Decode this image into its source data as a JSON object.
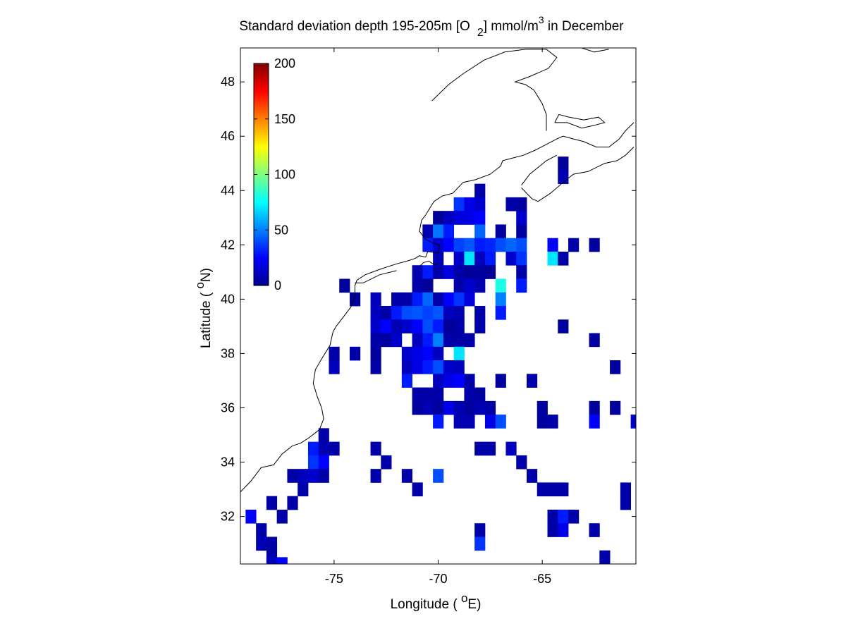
{
  "chart_data": {
    "type": "heatmap",
    "title": "Standard deviation depth 195-205m [O 2] mmol/m3 in December",
    "title_parts": {
      "main": "Standard deviation depth 195-205m [O",
      "subscript": "2",
      "units_pre": "] mmol/m",
      "superscript": "3",
      "tail": " in December"
    },
    "xlabel": "Longitude ( oE)",
    "xlabel_parts": {
      "pre": "Longitude ( ",
      "sup": "o",
      "post": "E)"
    },
    "ylabel": "Latitude ( oN)",
    "ylabel_parts": {
      "pre": "Latitude ( ",
      "sup": "o",
      "post": "N)"
    },
    "xlim": [
      -79.5,
      -60.5
    ],
    "ylim": [
      30.25,
      49.25
    ],
    "xticks": [
      -75,
      -70,
      -65
    ],
    "yticks": [
      32,
      34,
      36,
      38,
      40,
      42,
      44,
      46,
      48
    ],
    "xtick_labels": [
      "-75",
      "-70",
      "-65"
    ],
    "ytick_labels": [
      "32",
      "34",
      "36",
      "38",
      "40",
      "42",
      "44",
      "46",
      "48"
    ],
    "colorbar": {
      "colormap": "jet",
      "range": [
        0,
        200
      ],
      "ticks": [
        0,
        50,
        100,
        150,
        200
      ],
      "tick_labels": [
        "0",
        "50",
        "100",
        "150",
        "200"
      ],
      "position": "top-left, inside axes"
    },
    "grid": false,
    "cell_size_deg": 0.5,
    "cells": [
      [
        -64.0,
        45.0,
        5
      ],
      [
        -64.0,
        44.5,
        10
      ],
      [
        -68.0,
        44.0,
        8
      ],
      [
        -69.0,
        43.5,
        35
      ],
      [
        -68.5,
        43.5,
        20
      ],
      [
        -68.0,
        43.5,
        15
      ],
      [
        -66.5,
        43.5,
        8
      ],
      [
        -66.0,
        43.5,
        6
      ],
      [
        -70.0,
        43.0,
        5
      ],
      [
        -69.5,
        43.0,
        12
      ],
      [
        -69.0,
        43.0,
        18
      ],
      [
        -68.5,
        43.0,
        20
      ],
      [
        -68.0,
        43.0,
        25
      ],
      [
        -66.0,
        43.0,
        15
      ],
      [
        -70.5,
        42.5,
        10
      ],
      [
        -70.0,
        42.5,
        48
      ],
      [
        -69.5,
        42.5,
        30
      ],
      [
        -68.0,
        42.5,
        45
      ],
      [
        -67.0,
        42.5,
        6
      ],
      [
        -66.0,
        42.5,
        6
      ],
      [
        -70.5,
        42.0,
        30
      ],
      [
        -70.0,
        42.0,
        15
      ],
      [
        -69.5,
        42.0,
        25
      ],
      [
        -69.0,
        42.0,
        38
      ],
      [
        -68.5,
        42.0,
        42
      ],
      [
        -68.0,
        42.0,
        30
      ],
      [
        -67.5,
        42.0,
        32
      ],
      [
        -67.0,
        42.0,
        40
      ],
      [
        -66.5,
        42.0,
        45
      ],
      [
        -66.0,
        42.0,
        40
      ],
      [
        -64.5,
        42.0,
        25
      ],
      [
        -63.5,
        42.0,
        8
      ],
      [
        -62.5,
        42.0,
        6
      ],
      [
        -70.0,
        41.5,
        10
      ],
      [
        -69.0,
        41.5,
        15
      ],
      [
        -68.5,
        41.5,
        70
      ],
      [
        -68.0,
        41.5,
        12
      ],
      [
        -67.5,
        41.5,
        30
      ],
      [
        -66.5,
        41.5,
        15
      ],
      [
        -66.0,
        41.5,
        35
      ],
      [
        -64.5,
        41.5,
        70
      ],
      [
        -64.0,
        41.5,
        8
      ],
      [
        -71.0,
        41.0,
        10
      ],
      [
        -70.5,
        41.0,
        30
      ],
      [
        -70.0,
        41.0,
        8
      ],
      [
        -69.5,
        41.0,
        18
      ],
      [
        -69.0,
        41.0,
        8
      ],
      [
        -68.5,
        41.0,
        5
      ],
      [
        -68.0,
        41.0,
        6
      ],
      [
        -67.5,
        41.0,
        5
      ],
      [
        -66.0,
        41.0,
        8
      ],
      [
        -74.5,
        40.5,
        6
      ],
      [
        -71.0,
        40.5,
        8
      ],
      [
        -70.5,
        40.5,
        5
      ],
      [
        -69.0,
        40.5,
        8
      ],
      [
        -68.5,
        40.5,
        15
      ],
      [
        -68.0,
        40.5,
        10
      ],
      [
        -67.0,
        40.5,
        80
      ],
      [
        -66.0,
        40.5,
        30
      ],
      [
        -74.0,
        40.0,
        6
      ],
      [
        -73.0,
        40.0,
        12
      ],
      [
        -72.0,
        40.0,
        8
      ],
      [
        -71.5,
        40.0,
        8
      ],
      [
        -71.0,
        40.0,
        30
      ],
      [
        -70.5,
        40.0,
        45
      ],
      [
        -70.0,
        40.0,
        8
      ],
      [
        -69.5,
        40.0,
        25
      ],
      [
        -69.0,
        40.0,
        35
      ],
      [
        -68.5,
        40.0,
        18
      ],
      [
        -67.0,
        40.0,
        50
      ],
      [
        -73.0,
        39.5,
        12
      ],
      [
        -72.5,
        39.5,
        8
      ],
      [
        -72.0,
        39.5,
        30
      ],
      [
        -71.5,
        39.5,
        40
      ],
      [
        -71.0,
        39.5,
        42
      ],
      [
        -70.5,
        39.5,
        38
      ],
      [
        -70.0,
        39.5,
        42
      ],
      [
        -69.5,
        39.5,
        12
      ],
      [
        -69.0,
        39.5,
        10
      ],
      [
        -68.0,
        39.5,
        8
      ],
      [
        -67.0,
        39.5,
        30
      ],
      [
        -73.0,
        39.0,
        15
      ],
      [
        -72.5,
        39.0,
        25
      ],
      [
        -72.0,
        39.0,
        10
      ],
      [
        -71.5,
        39.0,
        15
      ],
      [
        -71.0,
        39.0,
        25
      ],
      [
        -70.5,
        39.0,
        40
      ],
      [
        -70.0,
        39.0,
        30
      ],
      [
        -69.5,
        39.0,
        5
      ],
      [
        -69.0,
        39.0,
        8
      ],
      [
        -68.0,
        39.0,
        8
      ],
      [
        -64.0,
        39.0,
        6
      ],
      [
        -73.0,
        38.5,
        8
      ],
      [
        -72.5,
        38.5,
        6
      ],
      [
        -72.0,
        38.5,
        15
      ],
      [
        -71.0,
        38.5,
        12
      ],
      [
        -70.5,
        38.5,
        30
      ],
      [
        -70.0,
        38.5,
        50
      ],
      [
        -69.5,
        38.5,
        8
      ],
      [
        -69.0,
        38.5,
        8
      ],
      [
        -68.5,
        38.5,
        8
      ],
      [
        -62.5,
        38.5,
        6
      ],
      [
        -75.0,
        38.0,
        8
      ],
      [
        -74.0,
        38.0,
        8
      ],
      [
        -73.0,
        38.0,
        6
      ],
      [
        -71.5,
        38.0,
        15
      ],
      [
        -71.0,
        38.0,
        20
      ],
      [
        -70.5,
        38.0,
        25
      ],
      [
        -70.0,
        38.0,
        12
      ],
      [
        -69.0,
        38.0,
        70
      ],
      [
        -75.0,
        37.5,
        12
      ],
      [
        -73.0,
        37.5,
        8
      ],
      [
        -71.5,
        37.5,
        12
      ],
      [
        -71.0,
        37.5,
        20
      ],
      [
        -70.5,
        37.5,
        30
      ],
      [
        -70.0,
        37.5,
        40
      ],
      [
        -69.5,
        37.5,
        15
      ],
      [
        -69.0,
        37.5,
        12
      ],
      [
        -61.5,
        37.5,
        6
      ],
      [
        -71.5,
        37.0,
        30
      ],
      [
        -70.0,
        37.0,
        12
      ],
      [
        -69.5,
        37.0,
        20
      ],
      [
        -69.0,
        37.0,
        25
      ],
      [
        -68.5,
        37.0,
        8
      ],
      [
        -67.0,
        37.0,
        6
      ],
      [
        -65.5,
        37.0,
        8
      ],
      [
        -71.0,
        36.5,
        8
      ],
      [
        -70.5,
        36.5,
        8
      ],
      [
        -70.0,
        36.5,
        8
      ],
      [
        -68.5,
        36.5,
        8
      ],
      [
        -68.0,
        36.5,
        6
      ],
      [
        -71.0,
        36.0,
        6
      ],
      [
        -70.5,
        36.0,
        10
      ],
      [
        -70.0,
        36.0,
        6
      ],
      [
        -69.5,
        36.0,
        20
      ],
      [
        -69.0,
        36.0,
        10
      ],
      [
        -68.5,
        36.0,
        6
      ],
      [
        -68.0,
        36.0,
        10
      ],
      [
        -67.5,
        36.0,
        8
      ],
      [
        -65.0,
        36.0,
        6
      ],
      [
        -62.5,
        36.0,
        6
      ],
      [
        -61.5,
        36.0,
        6
      ],
      [
        -70.0,
        35.5,
        30
      ],
      [
        -69.0,
        35.5,
        10
      ],
      [
        -68.5,
        35.5,
        10
      ],
      [
        -67.5,
        35.5,
        20
      ],
      [
        -67.0,
        35.5,
        40
      ],
      [
        -65.0,
        35.5,
        6
      ],
      [
        -64.5,
        35.5,
        8
      ],
      [
        -62.5,
        35.5,
        25
      ],
      [
        -60.5,
        35.5,
        15
      ],
      [
        -75.5,
        35.0,
        8
      ],
      [
        -76.0,
        34.5,
        30
      ],
      [
        -75.5,
        34.5,
        10
      ],
      [
        -75.0,
        34.5,
        8
      ],
      [
        -73.0,
        34.5,
        8
      ],
      [
        -68.0,
        34.5,
        8
      ],
      [
        -67.5,
        34.5,
        8
      ],
      [
        -66.5,
        34.5,
        12
      ],
      [
        -76.0,
        34.0,
        35
      ],
      [
        -75.5,
        34.0,
        25
      ],
      [
        -72.5,
        34.0,
        8
      ],
      [
        -66.0,
        34.0,
        8
      ],
      [
        -77.0,
        33.5,
        8
      ],
      [
        -76.5,
        33.5,
        12
      ],
      [
        -76.0,
        33.5,
        15
      ],
      [
        -75.5,
        33.5,
        8
      ],
      [
        -73.0,
        33.5,
        8
      ],
      [
        -71.5,
        33.5,
        8
      ],
      [
        -70.0,
        33.5,
        40
      ],
      [
        -65.5,
        33.5,
        8
      ],
      [
        -76.5,
        33.0,
        8
      ],
      [
        -71.0,
        33.0,
        8
      ],
      [
        -65.0,
        33.0,
        8
      ],
      [
        -64.5,
        33.0,
        8
      ],
      [
        -64.0,
        33.0,
        8
      ],
      [
        -61.0,
        33.0,
        8
      ],
      [
        -78.0,
        32.5,
        8
      ],
      [
        -77.0,
        32.5,
        8
      ],
      [
        -61.0,
        32.5,
        8
      ],
      [
        -79.0,
        32.0,
        25
      ],
      [
        -77.5,
        32.0,
        8
      ],
      [
        -64.5,
        32.0,
        8
      ],
      [
        -64.0,
        32.0,
        30
      ],
      [
        -63.5,
        32.0,
        8
      ],
      [
        -78.5,
        31.5,
        8
      ],
      [
        -68.0,
        31.5,
        8
      ],
      [
        -64.5,
        31.5,
        8
      ],
      [
        -64.0,
        31.5,
        20
      ],
      [
        -62.5,
        31.5,
        8
      ],
      [
        -78.5,
        31.0,
        10
      ],
      [
        -78.0,
        31.0,
        8
      ],
      [
        -68.0,
        31.0,
        35
      ],
      [
        -78.0,
        30.5,
        8
      ],
      [
        -62.0,
        30.5,
        8
      ],
      [
        -78.0,
        30.25,
        12
      ],
      [
        -77.5,
        30.25,
        25
      ]
    ],
    "coastlines": [
      [
        [
          -79.5,
          32.9
        ],
        [
          -79.0,
          33.3
        ],
        [
          -78.5,
          33.8
        ],
        [
          -77.9,
          33.9
        ],
        [
          -77.5,
          34.3
        ],
        [
          -77.0,
          34.6
        ],
        [
          -76.6,
          34.7
        ],
        [
          -76.2,
          34.9
        ],
        [
          -75.7,
          35.2
        ],
        [
          -75.5,
          35.6
        ],
        [
          -75.6,
          36.0
        ],
        [
          -75.8,
          36.4
        ],
        [
          -76.0,
          36.9
        ],
        [
          -75.9,
          37.4
        ],
        [
          -75.6,
          37.8
        ],
        [
          -75.2,
          38.3
        ],
        [
          -75.05,
          38.8
        ],
        [
          -74.9,
          39.0
        ],
        [
          -74.6,
          39.3
        ],
        [
          -74.2,
          39.7
        ],
        [
          -74.0,
          40.1
        ],
        [
          -74.0,
          40.5
        ],
        [
          -73.9,
          40.7
        ],
        [
          -73.5,
          40.9
        ],
        [
          -72.8,
          41.1
        ],
        [
          -72.0,
          41.3
        ],
        [
          -71.5,
          41.4
        ],
        [
          -71.1,
          41.5
        ],
        [
          -70.9,
          41.6
        ],
        [
          -70.6,
          41.55
        ],
        [
          -70.5,
          41.75
        ],
        [
          -70.0,
          41.7
        ],
        [
          -69.95,
          42.0
        ],
        [
          -70.2,
          42.05
        ],
        [
          -70.6,
          42.2
        ],
        [
          -70.9,
          42.5
        ],
        [
          -70.8,
          42.9
        ],
        [
          -70.6,
          43.1
        ],
        [
          -70.2,
          43.6
        ],
        [
          -69.8,
          43.8
        ],
        [
          -69.3,
          43.9
        ],
        [
          -68.8,
          44.3
        ],
        [
          -68.2,
          44.4
        ],
        [
          -67.5,
          44.6
        ],
        [
          -67.0,
          44.9
        ],
        [
          -66.9,
          45.1
        ],
        [
          -66.4,
          45.2
        ],
        [
          -65.9,
          45.3
        ],
        [
          -65.3,
          45.5
        ],
        [
          -64.8,
          45.7
        ],
        [
          -64.3,
          45.9
        ],
        [
          -64.0,
          46.0
        ],
        [
          -63.5,
          45.9
        ],
        [
          -63.0,
          45.8
        ],
        [
          -62.4,
          45.6
        ],
        [
          -61.8,
          45.6
        ],
        [
          -61.3,
          45.9
        ],
        [
          -61.0,
          46.2
        ],
        [
          -60.6,
          46.5
        ]
      ],
      [
        [
          -66.0,
          44.1
        ],
        [
          -65.5,
          43.7
        ],
        [
          -65.2,
          43.6
        ],
        [
          -64.6,
          43.9
        ],
        [
          -64.0,
          44.3
        ],
        [
          -63.5,
          44.6
        ],
        [
          -62.8,
          44.7
        ],
        [
          -62.0,
          45.0
        ],
        [
          -61.4,
          45.1
        ],
        [
          -61.0,
          45.3
        ],
        [
          -60.6,
          45.6
        ]
      ],
      [
        [
          -66.0,
          44.2
        ],
        [
          -65.6,
          44.6
        ],
        [
          -64.8,
          45.1
        ],
        [
          -64.3,
          45.3
        ]
      ],
      [
        [
          -64.4,
          46.5
        ],
        [
          -63.8,
          46.5
        ],
        [
          -63.1,
          46.3
        ],
        [
          -62.5,
          46.4
        ],
        [
          -62.0,
          46.5
        ],
        [
          -62.3,
          46.7
        ],
        [
          -63.0,
          46.6
        ],
        [
          -63.7,
          46.7
        ],
        [
          -64.2,
          46.8
        ],
        [
          -64.4,
          46.5
        ]
      ],
      [
        [
          -64.8,
          46.2
        ],
        [
          -64.8,
          46.8
        ],
        [
          -65.0,
          47.2
        ],
        [
          -65.4,
          47.7
        ],
        [
          -65.8,
          47.9
        ],
        [
          -66.3,
          48.0
        ],
        [
          -65.6,
          48.2
        ],
        [
          -64.7,
          48.5
        ],
        [
          -64.3,
          48.9
        ],
        [
          -64.8,
          49.2
        ],
        [
          -65.8,
          49.2
        ],
        [
          -66.8,
          49.1
        ],
        [
          -67.8,
          48.8
        ],
        [
          -68.8,
          48.3
        ],
        [
          -69.5,
          47.9
        ],
        [
          -70.3,
          47.3
        ]
      ],
      [
        [
          -61.8,
          49.2
        ],
        [
          -62.5,
          49.1
        ],
        [
          -63.5,
          49.35
        ],
        [
          -64.3,
          49.5
        ]
      ],
      [
        [
          -70.9,
          41.2
        ],
        [
          -70.7,
          41.35
        ],
        [
          -70.45,
          41.4
        ],
        [
          -70.25,
          41.3
        ],
        [
          -70.05,
          41.25
        ]
      ],
      [
        [
          -72.0,
          41.05
        ],
        [
          -72.8,
          40.9
        ],
        [
          -73.6,
          40.6
        ],
        [
          -74.0,
          40.6
        ]
      ]
    ]
  }
}
